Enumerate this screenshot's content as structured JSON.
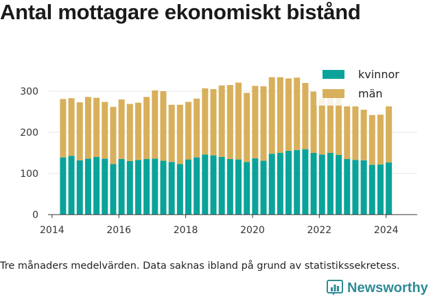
{
  "title": "Antal mottagare ekonomiskt bistånd",
  "footnote": "Tre månaders medelvärden. Data saknas ibland på grund av statistikssekretess.",
  "brand": {
    "name": "Newsworthy"
  },
  "colors": {
    "kvinnor": "#0aa399",
    "man": "#d8b05c",
    "grid": "#e6e6e6",
    "axis": "#333333",
    "brand": "#2e8b96"
  },
  "chart_data": {
    "type": "bar",
    "stacked": true,
    "x_ticks": [
      "2014",
      "2016",
      "2018",
      "2020",
      "2022",
      "2024"
    ],
    "y_ticks": [
      "0",
      "100",
      "200",
      "300"
    ],
    "ylim": [
      0,
      340
    ],
    "legend": {
      "position": "top-right"
    },
    "series": [
      {
        "name": "kvinnor",
        "x": [
          2014.33,
          2014.58,
          2014.83,
          2015.08,
          2015.33,
          2015.58,
          2015.83,
          2016.08,
          2016.33,
          2016.58,
          2016.83,
          2017.08,
          2017.33,
          2017.58,
          2017.83,
          2018.08,
          2018.33,
          2018.58,
          2018.83,
          2019.08,
          2019.33,
          2019.58,
          2019.83,
          2020.08,
          2020.33,
          2020.58,
          2020.83,
          2021.08,
          2021.33,
          2021.58,
          2021.83,
          2022.08,
          2022.33,
          2022.58,
          2022.83,
          2023.08,
          2023.33,
          2023.58,
          2023.83,
          2024.08
        ],
        "values": [
          139,
          143,
          132,
          136,
          140,
          136,
          123,
          135,
          130,
          133,
          135,
          136,
          131,
          128,
          123,
          134,
          139,
          146,
          144,
          140,
          135,
          134,
          128,
          137,
          131,
          148,
          150,
          155,
          157,
          159,
          150,
          146,
          150,
          145,
          135,
          133,
          132,
          121,
          122,
          127
        ]
      },
      {
        "name": "män",
        "x": [
          2014.33,
          2014.58,
          2014.83,
          2015.08,
          2015.33,
          2015.58,
          2015.83,
          2016.08,
          2016.33,
          2016.58,
          2016.83,
          2017.08,
          2017.33,
          2017.58,
          2017.83,
          2018.08,
          2018.33,
          2018.58,
          2018.83,
          2019.08,
          2019.33,
          2019.58,
          2019.83,
          2020.08,
          2020.33,
          2020.58,
          2020.83,
          2021.08,
          2021.33,
          2021.58,
          2021.83,
          2022.08,
          2022.33,
          2022.58,
          2022.83,
          2023.08,
          2023.33,
          2023.58,
          2023.83,
          2024.08
        ],
        "values": [
          142,
          140,
          141,
          150,
          144,
          138,
          139,
          145,
          139,
          139,
          151,
          166,
          169,
          139,
          144,
          140,
          143,
          161,
          161,
          174,
          180,
          187,
          168,
          176,
          181,
          186,
          184,
          176,
          176,
          161,
          149,
          136,
          134,
          140,
          128,
          130,
          123,
          121,
          121,
          136
        ]
      }
    ]
  }
}
